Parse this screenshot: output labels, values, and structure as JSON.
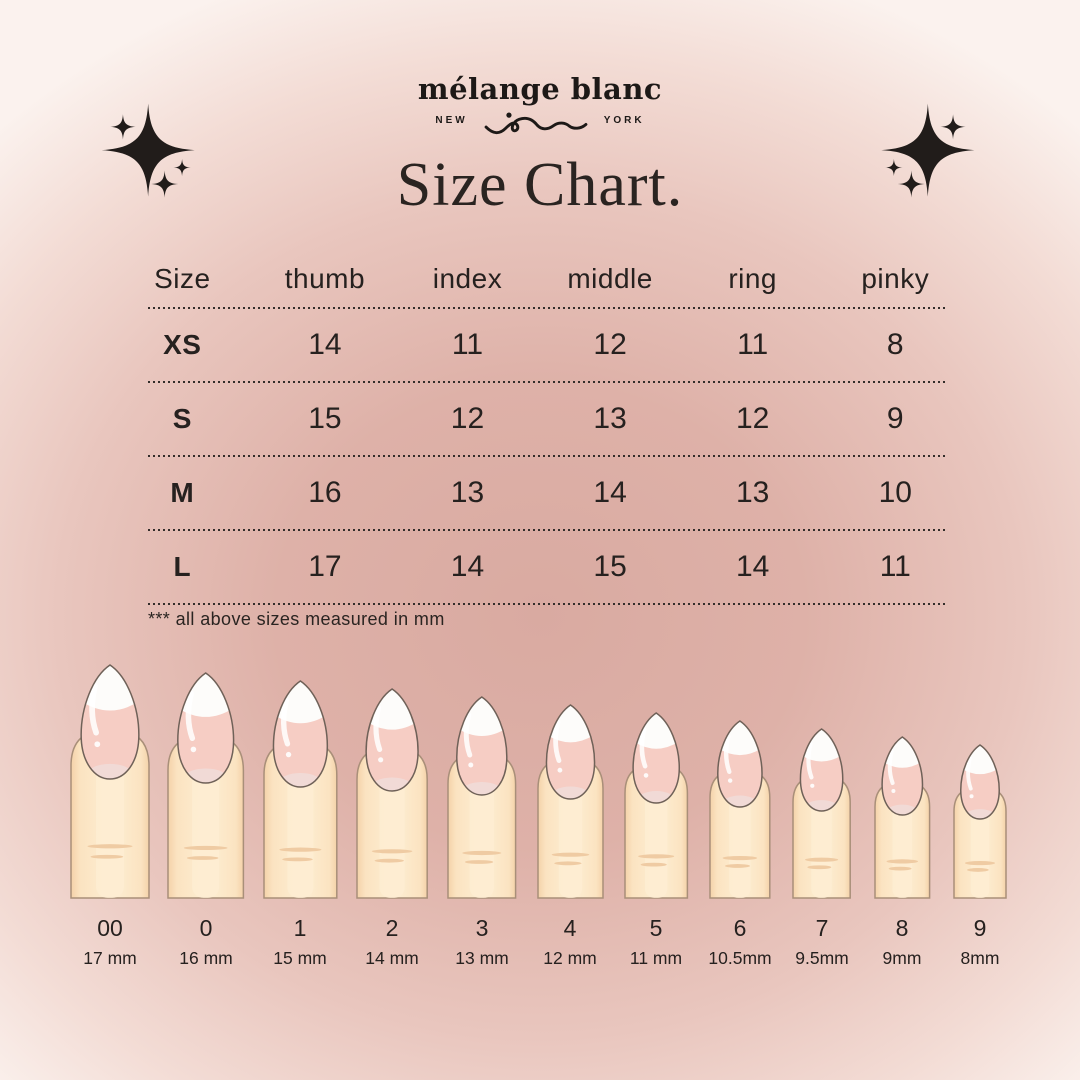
{
  "brand": {
    "wordmark": "mélange blanc",
    "left_text": "NEW",
    "right_text": "YORK"
  },
  "title": "Size Chart.",
  "footnote": "*** all above sizes measured in mm",
  "chart_data": {
    "type": "table",
    "title": "Size Chart.",
    "columns": [
      "Size",
      "thumb",
      "index",
      "middle",
      "ring",
      "pinky"
    ],
    "rows": [
      [
        "XS",
        14,
        11,
        12,
        11,
        8
      ],
      [
        "S",
        15,
        12,
        13,
        12,
        9
      ],
      [
        "M",
        16,
        13,
        14,
        13,
        10
      ],
      [
        "L",
        17,
        14,
        15,
        14,
        11
      ]
    ],
    "units_note": "*** all above sizes measured in mm",
    "nail_size_guide": [
      {
        "label": "00",
        "mm": "17 mm"
      },
      {
        "label": "0",
        "mm": "16 mm"
      },
      {
        "label": "1",
        "mm": "15 mm"
      },
      {
        "label": "2",
        "mm": "14 mm"
      },
      {
        "label": "3",
        "mm": "13 mm"
      },
      {
        "label": "4",
        "mm": "12 mm"
      },
      {
        "label": "5",
        "mm": "11 mm"
      },
      {
        "label": "6",
        "mm": "10.5mm"
      },
      {
        "label": "7",
        "mm": "9.5mm"
      },
      {
        "label": "8",
        "mm": "9mm"
      },
      {
        "label": "9",
        "mm": "8mm"
      }
    ]
  },
  "colors": {
    "background_center": "#d9aaa1",
    "background_edge": "#fbf2ee",
    "ink": "#26211f",
    "finger_skin": "#fbe3c1",
    "finger_highlight": "#fdedd3",
    "finger_outline": "#a98f79",
    "crease": "#efcba3",
    "nail_pink": "#f6cdc4",
    "nail_tip_white": "#fdfcfa",
    "nail_free_edge": "#f1dcd8",
    "nail_outline": "#6f6158"
  }
}
